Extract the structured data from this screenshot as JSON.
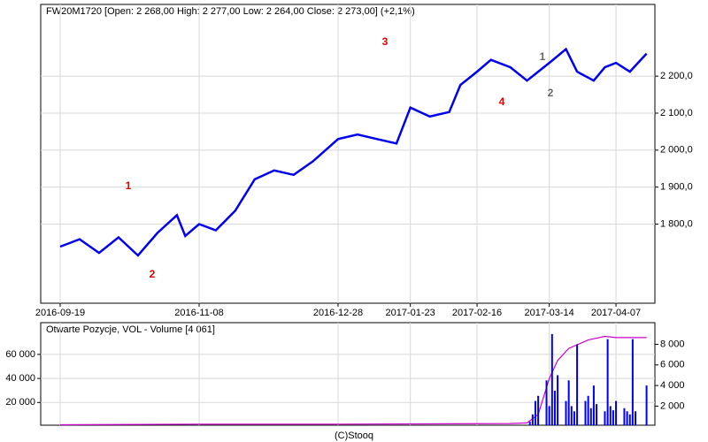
{
  "chart_data": [
    {
      "type": "line",
      "title": "FW20M1720 [Open: 2 268,00  High: 2 277,00  Low: 2 264,00  Close: 2 273,00] (+2,1%)",
      "x": [
        "2016-09-19",
        "2016-09-26",
        "2016-10-03",
        "2016-10-10",
        "2016-10-17",
        "2016-10-24",
        "2016-10-31",
        "2016-11-03",
        "2016-11-08",
        "2016-11-14",
        "2016-11-21",
        "2016-11-28",
        "2016-12-05",
        "2016-12-12",
        "2016-12-19",
        "2016-12-28",
        "2017-01-04",
        "2017-01-11",
        "2017-01-18",
        "2017-01-23",
        "2017-01-30",
        "2017-02-06",
        "2017-02-10",
        "2017-02-16",
        "2017-02-21",
        "2017-02-28",
        "2017-03-06",
        "2017-03-10",
        "2017-03-14",
        "2017-03-20",
        "2017-03-24",
        "2017-03-30",
        "2017-04-03",
        "2017-04-07",
        "2017-04-12",
        "2017-04-18"
      ],
      "values": [
        1739,
        1759,
        1722,
        1764,
        1715,
        1776,
        1824,
        1768,
        1800,
        1783,
        1836,
        1921,
        1945,
        1933,
        1970,
        2030,
        2042,
        2030,
        2018,
        2115,
        2091,
        2103,
        2176,
        2212,
        2244,
        2224,
        2188,
        2212,
        2236,
        2273,
        2212,
        2188,
        2224,
        2236,
        2212,
        2261
      ],
      "color": "#0000ee",
      "xlim": [
        "2016-09-12",
        "2017-04-21"
      ],
      "xticks": [
        "2016-09-19",
        "2016-11-08",
        "2016-12-28",
        "2017-01-23",
        "2017-02-16",
        "2017-03-14",
        "2017-04-07"
      ],
      "ylim": [
        1586,
        2394
      ],
      "yticks": [
        {
          "value": 1800,
          "label": "1 800,0"
        },
        {
          "value": 1900,
          "label": "1 900,0"
        },
        {
          "value": 2000,
          "label": "2 000,0"
        },
        {
          "value": 2100,
          "label": "2 100,0"
        },
        {
          "value": 2200,
          "label": "2 200,0"
        }
      ],
      "grid": true,
      "annotations": [
        {
          "text": "1",
          "color": "#dd0000"
        },
        {
          "text": "2",
          "color": "#dd0000"
        },
        {
          "text": "3",
          "color": "#dd0000"
        },
        {
          "text": "4",
          "color": "#dd0000"
        },
        {
          "text": "1",
          "color": "#666666"
        },
        {
          "text": "2",
          "color": "#666666"
        }
      ]
    },
    {
      "type": "bar-line",
      "title": "Otwarte Pozycje, VOL - Volume [4 061]",
      "xlim": [
        "2016-09-12",
        "2017-04-21"
      ],
      "xticks": [
        "2016-09-19",
        "2016-11-08",
        "2016-12-28",
        "2017-01-23",
        "2017-02-16",
        "2017-03-14",
        "2017-04-07"
      ],
      "ylim": [
        1100,
        86400
      ],
      "yticks": [
        {
          "value": 20000,
          "label": "20 000"
        },
        {
          "value": 40000,
          "label": "40 000"
        },
        {
          "value": 60000,
          "label": "60 000"
        }
      ],
      "y2lim": [
        150,
        10100
      ],
      "y2ticks": [
        {
          "value": 2000,
          "label": "2 000"
        },
        {
          "value": 4000,
          "label": "4 000"
        },
        {
          "value": 6000,
          "label": "6 000"
        },
        {
          "value": 8000,
          "label": "8 000"
        }
      ],
      "grid": true,
      "series": [
        {
          "type": "line",
          "color": "#cc00cc",
          "x": [
            "2016-09-19",
            "2016-11-08",
            "2016-12-28",
            "2017-02-28",
            "2017-03-06",
            "2017-03-10",
            "2017-03-14",
            "2017-03-17",
            "2017-03-21",
            "2017-03-28",
            "2017-04-03",
            "2017-04-07",
            "2017-04-18"
          ],
          "values": [
            1500,
            2000,
            2000,
            2500,
            3000,
            10000,
            40000,
            55000,
            65000,
            72000,
            75000,
            74000,
            74000
          ]
        },
        {
          "type": "bar",
          "color": "#0000ee",
          "axis": "y2",
          "x": [
            "2017-03-07",
            "2017-03-08",
            "2017-03-09",
            "2017-03-10",
            "2017-03-13",
            "2017-03-14",
            "2017-03-15",
            "2017-03-16",
            "2017-03-17",
            "2017-03-20",
            "2017-03-21",
            "2017-03-22",
            "2017-03-23",
            "2017-03-24",
            "2017-03-27",
            "2017-03-28",
            "2017-03-29",
            "2017-03-30",
            "2017-03-31",
            "2017-04-03",
            "2017-04-04",
            "2017-04-05",
            "2017-04-06",
            "2017-04-07",
            "2017-04-10",
            "2017-04-11",
            "2017-04-12",
            "2017-04-13",
            "2017-04-14",
            "2017-04-18"
          ],
          "values": [
            500,
            1200,
            2500,
            3000,
            4500,
            2000,
            9000,
            3500,
            5000,
            2500,
            4500,
            2000,
            1500,
            8000,
            2500,
            3000,
            1800,
            4000,
            2200,
            1500,
            8500,
            2000,
            1600,
            2500,
            1800,
            1500,
            1200,
            8500,
            1500,
            4000
          ]
        }
      ]
    }
  ],
  "footer": "(C)Stooq"
}
